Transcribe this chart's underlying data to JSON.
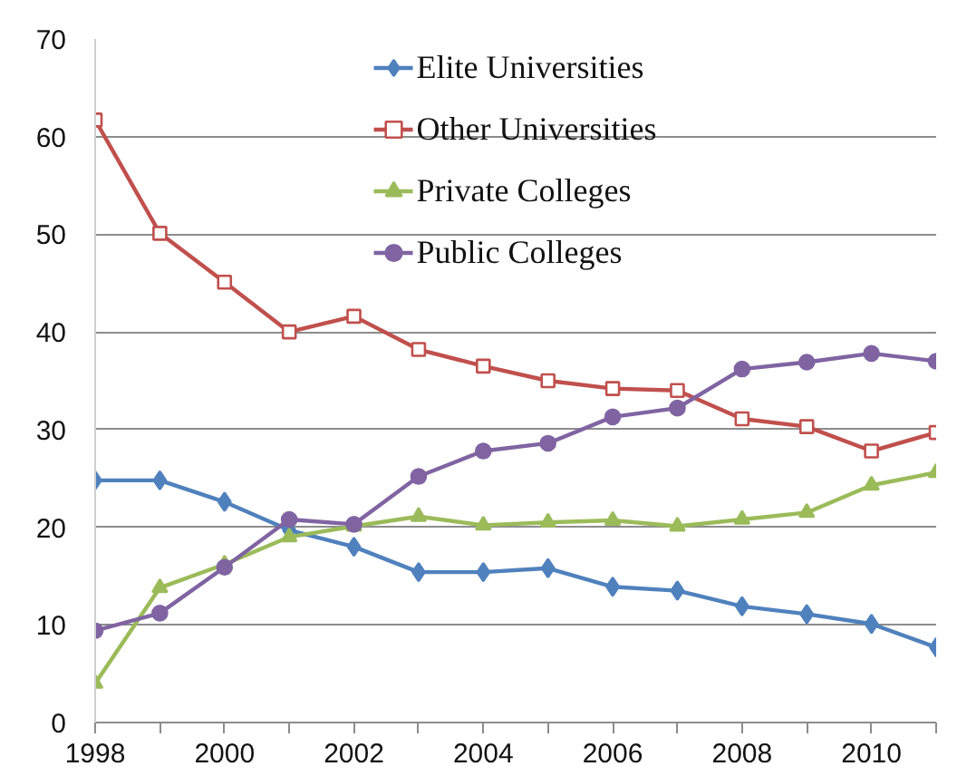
{
  "chart_data": {
    "type": "line",
    "x": [
      1998,
      1999,
      2000,
      2001,
      2002,
      2003,
      2004,
      2005,
      2006,
      2007,
      2008,
      2009,
      2010,
      2011
    ],
    "series": [
      {
        "name": "Elite Universities",
        "color": "#4f81bd",
        "marker": "diamond",
        "values": [
          24.8,
          24.8,
          22.6,
          19.7,
          18.0,
          15.4,
          15.4,
          15.8,
          13.9,
          13.5,
          11.9,
          11.1,
          10.1,
          7.7
        ]
      },
      {
        "name": "Other Universities",
        "color": "#c0504d",
        "marker": "square",
        "values": [
          61.7,
          50.1,
          45.1,
          40.0,
          41.6,
          38.2,
          36.5,
          35.0,
          34.2,
          34.0,
          31.1,
          30.3,
          27.8,
          29.7
        ]
      },
      {
        "name": "Private Colleges",
        "color": "#9bbb59",
        "marker": "triangle",
        "values": [
          4.0,
          13.8,
          16.2,
          19.0,
          20.1,
          21.1,
          20.2,
          20.5,
          20.7,
          20.1,
          20.8,
          21.5,
          24.3,
          25.6
        ]
      },
      {
        "name": "Public Colleges",
        "color": "#8064a2",
        "marker": "circle",
        "values": [
          9.4,
          11.2,
          15.9,
          20.8,
          20.3,
          25.2,
          27.8,
          28.6,
          31.3,
          32.2,
          36.2,
          36.9,
          37.8,
          37.0
        ]
      }
    ],
    "xlim": [
      1998,
      2011
    ],
    "ylim": [
      0,
      70
    ],
    "xticks": [
      1998,
      {
        "value": 1999,
        "label": null
      },
      2000,
      {
        "value": 2001,
        "label": null
      },
      2002,
      {
        "value": 2003,
        "label": null
      },
      2004,
      {
        "value": 2005,
        "label": null
      },
      2006,
      {
        "value": 2007,
        "label": null
      },
      2008,
      {
        "value": 2009,
        "label": null
      },
      2010,
      {
        "value": 2011,
        "label": null
      }
    ],
    "yticks": [
      0,
      10,
      20,
      30,
      40,
      50,
      60,
      70
    ],
    "grid": "y",
    "legend": "top",
    "line_style": "solid"
  }
}
